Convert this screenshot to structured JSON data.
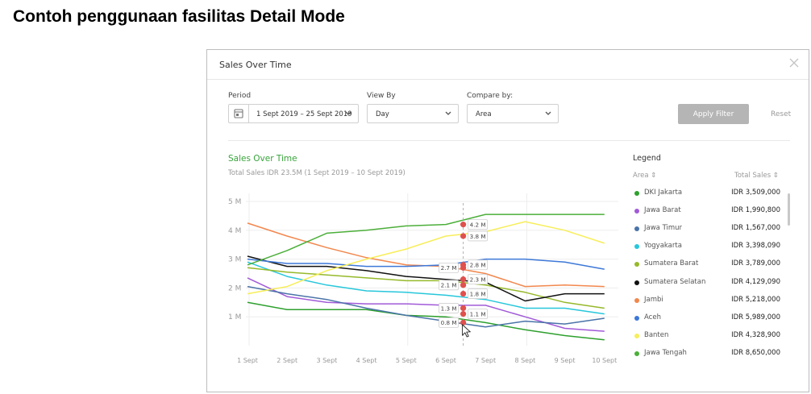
{
  "page_title": "Contoh penggunaan fasilitas Detail Mode",
  "modal": {
    "title": "Sales Over Time"
  },
  "filters": {
    "period": {
      "label": "Period",
      "value": "1 Sept 2019 – 25 Sept 2019"
    },
    "view_by": {
      "label": "View By",
      "value": "Day"
    },
    "compare_by": {
      "label": "Compare by:",
      "value": "Area"
    },
    "apply_label": "Apply Filter",
    "reset_label": "Reset"
  },
  "colors": {
    "accent_green": "#37a43a",
    "apply_bg": "#b5b5b5",
    "marker_red": "#e0504d"
  },
  "chart_data": {
    "type": "line",
    "title": "Sales Over Time",
    "subtitle": "Total Sales IDR 23.5M (1 Sept 2019 – 10 Sept 2019)",
    "ylim": [
      0,
      5
    ],
    "yticks": [
      "1 M",
      "2 M",
      "3 M",
      "4 M",
      "5 M"
    ],
    "categories": [
      "1 Sept",
      "2 Sept",
      "3 Sept",
      "4 Sept",
      "5 Sept",
      "6 Sept",
      "7 Sept",
      "8 Sept",
      "9 Sept",
      "10 Sept"
    ],
    "grid": true,
    "hover_index": 5.5,
    "hover_labels": [
      "4.2 M",
      "3.8 M",
      "2.8 M",
      "2.7 M",
      "2.3 M",
      "2.1 M",
      "1.8 M",
      "1.3 M",
      "1.1 M",
      "0.8 M"
    ],
    "series": [
      {
        "name": "DKI Jakarta",
        "color": "#2ea02e",
        "values": [
          1.5,
          1.25,
          1.25,
          1.25,
          1.05,
          1.0,
          0.8,
          0.55,
          0.35,
          0.2
        ]
      },
      {
        "name": "Jawa Barat",
        "color": "#a15ad8",
        "values": [
          2.35,
          1.7,
          1.5,
          1.45,
          1.45,
          1.4,
          1.4,
          1.0,
          0.6,
          0.5
        ]
      },
      {
        "name": "Jawa Timur",
        "color": "#4a73a8",
        "values": [
          2.05,
          1.8,
          1.6,
          1.3,
          1.05,
          0.85,
          0.65,
          0.85,
          0.75,
          0.95
        ]
      },
      {
        "name": "Yogyakarta",
        "color": "#27c7db",
        "values": [
          2.9,
          2.4,
          2.1,
          1.9,
          1.85,
          1.75,
          1.6,
          1.3,
          1.3,
          1.1
        ]
      },
      {
        "name": "Sumatera Barat",
        "color": "#96b92a",
        "values": [
          2.7,
          2.55,
          2.45,
          2.35,
          2.25,
          2.25,
          2.1,
          1.85,
          1.5,
          1.3
        ]
      },
      {
        "name": "Sumatera Selatan",
        "color": "#111111",
        "values": [
          3.1,
          2.75,
          2.75,
          2.6,
          2.4,
          2.3,
          2.2,
          1.55,
          1.8,
          1.8
        ]
      },
      {
        "name": "Jambi",
        "color": "#f2874d",
        "values": [
          4.25,
          3.8,
          3.4,
          3.05,
          2.8,
          2.75,
          2.5,
          2.05,
          2.1,
          2.05
        ]
      },
      {
        "name": "Aceh",
        "color": "#3d78d8",
        "values": [
          3.0,
          2.85,
          2.85,
          2.75,
          2.75,
          2.8,
          3.0,
          3.0,
          2.9,
          2.65
        ]
      },
      {
        "name": "Banten",
        "color": "#f7ee5a",
        "values": [
          1.8,
          2.05,
          2.6,
          3.0,
          3.35,
          3.8,
          3.95,
          4.3,
          4.0,
          3.55
        ]
      },
      {
        "name": "Jawa Tengah",
        "color": "#4caf3a",
        "values": [
          2.8,
          3.3,
          3.9,
          4.0,
          4.15,
          4.2,
          4.55,
          4.55,
          4.55,
          4.55
        ]
      }
    ]
  },
  "legend": {
    "title": "Legend",
    "col_area": "Area ⇕",
    "col_total": "Total Sales ⇕",
    "items": [
      {
        "name": "DKI Jakarta",
        "total": "IDR 3,509,000",
        "color": "#2ea02e"
      },
      {
        "name": "Jawa Barat",
        "total": "IDR 1,990,800",
        "color": "#a15ad8"
      },
      {
        "name": "Jawa Timur",
        "total": "IDR 1,567,000",
        "color": "#4a73a8"
      },
      {
        "name": "Yogyakarta",
        "total": "IDR 3,398,090",
        "color": "#27c7db"
      },
      {
        "name": "Sumatera Barat",
        "total": "IDR 3,789,000",
        "color": "#96b92a"
      },
      {
        "name": "Sumatera Selatan",
        "total": "IDR 4,129,090",
        "color": "#111111"
      },
      {
        "name": "Jambi",
        "total": "IDR 5,218,000",
        "color": "#f2874d"
      },
      {
        "name": "Aceh",
        "total": "IDR 5,989,000",
        "color": "#3d78d8"
      },
      {
        "name": "Banten",
        "total": "IDR 4,328,900",
        "color": "#f7ee5a"
      },
      {
        "name": "Jawa Tengah",
        "total": "IDR 8,650,000",
        "color": "#4caf3a"
      }
    ]
  }
}
